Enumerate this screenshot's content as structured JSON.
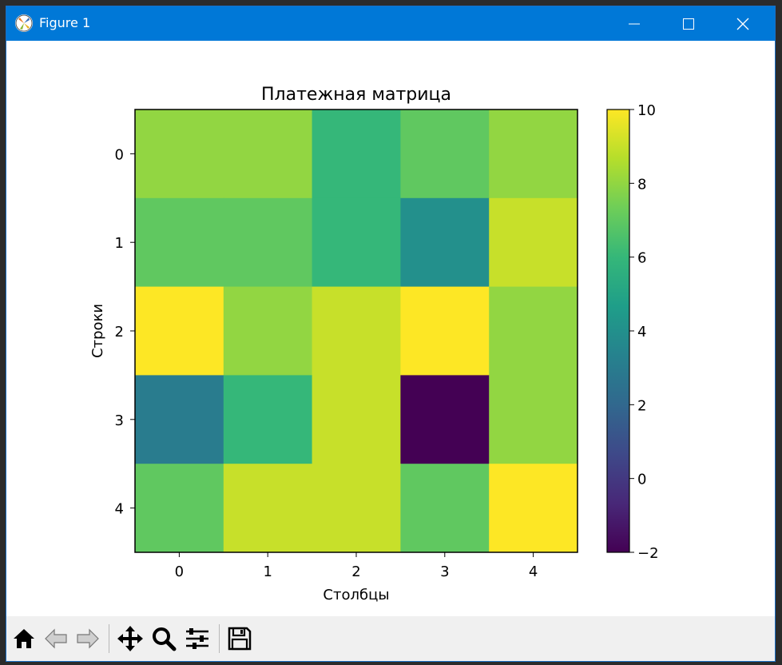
{
  "window": {
    "title": "Figure 1",
    "icons": {
      "app": "matplotlib-icon",
      "minimize": "minimize-icon",
      "maximize": "maximize-icon",
      "close": "close-icon"
    }
  },
  "toolbar": {
    "buttons": [
      {
        "name": "home-button",
        "icon": "home-icon"
      },
      {
        "name": "back-button",
        "icon": "back-arrow-icon"
      },
      {
        "name": "forward-button",
        "icon": "forward-arrow-icon"
      },
      {
        "name": "pan-button",
        "icon": "move-icon"
      },
      {
        "name": "zoom-button",
        "icon": "magnifier-icon"
      },
      {
        "name": "configure-subplots-button",
        "icon": "sliders-icon"
      },
      {
        "name": "save-button",
        "icon": "floppy-disk-icon"
      }
    ]
  },
  "colors": {
    "titlebar": "#0078d7",
    "viridis": [
      "#440154",
      "#482878",
      "#3e4989",
      "#31688e",
      "#26828e",
      "#1f9e89",
      "#35b779",
      "#6ece58",
      "#b5de2b",
      "#fde725"
    ]
  },
  "chart_data": {
    "type": "heatmap",
    "title": "Платежная матрица",
    "xlabel": "Столбцы",
    "ylabel": "Строки",
    "x_ticks": [
      "0",
      "1",
      "2",
      "3",
      "4"
    ],
    "y_ticks": [
      "0",
      "1",
      "2",
      "3",
      "4"
    ],
    "values": [
      [
        8,
        8,
        6,
        7,
        8
      ],
      [
        7,
        7,
        6,
        4,
        9
      ],
      [
        10,
        8,
        9,
        10,
        8
      ],
      [
        3,
        6,
        9,
        -2,
        8
      ],
      [
        7,
        9,
        9,
        7,
        10
      ]
    ],
    "colorbar": {
      "min": -2,
      "max": 10,
      "ticks": [
        -2,
        0,
        2,
        4,
        6,
        8,
        10
      ],
      "tick_labels": [
        "−2",
        "0",
        "2",
        "4",
        "6",
        "8",
        "10"
      ],
      "colormap": "viridis"
    }
  }
}
